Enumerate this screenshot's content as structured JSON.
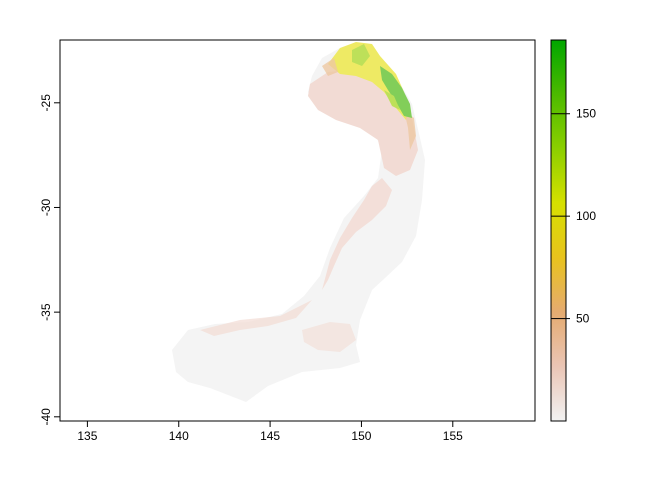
{
  "map": {
    "x_ticks": [
      "135",
      "140",
      "145",
      "150",
      "155"
    ],
    "y_ticks": [
      "-25",
      "-30",
      "-35",
      "-40"
    ],
    "x_range": [
      133.5,
      159.5
    ],
    "y_range": [
      -40.2,
      -22.0
    ],
    "legend": {
      "range": [
        0,
        186
      ],
      "ticks": [
        "50",
        "100",
        "150"
      ],
      "colors": [
        "#f2f2f2",
        "#eac5b5",
        "#e5ab70",
        "#e8c31d",
        "#d6e000",
        "#8ccf00",
        "#4cba00",
        "#00a600"
      ]
    }
  }
}
